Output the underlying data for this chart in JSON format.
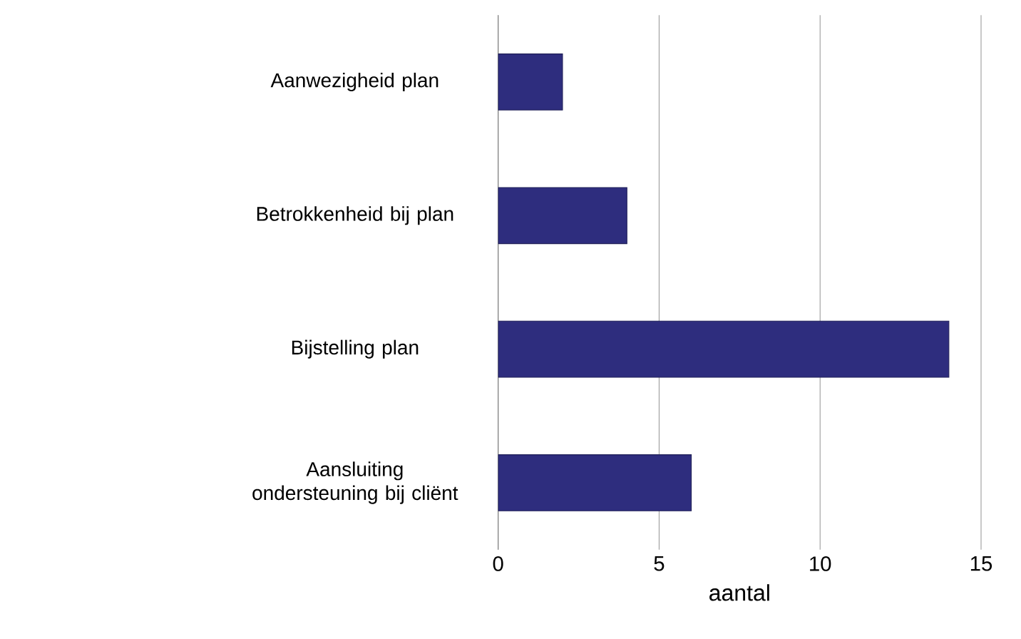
{
  "chart_data": {
    "type": "bar",
    "orientation": "horizontal",
    "categories": [
      "Aanwezigheid plan",
      "Betrokkenheid bij plan",
      "Bijstelling plan",
      "Aansluiting ondersteuning bij cliënt"
    ],
    "values": [
      2,
      4,
      14,
      6
    ],
    "color": "#2e2d7e",
    "xlim": [
      0,
      15
    ],
    "xticks": [
      0,
      5,
      10,
      15
    ],
    "xlabel": "aantal",
    "grid": "x"
  }
}
